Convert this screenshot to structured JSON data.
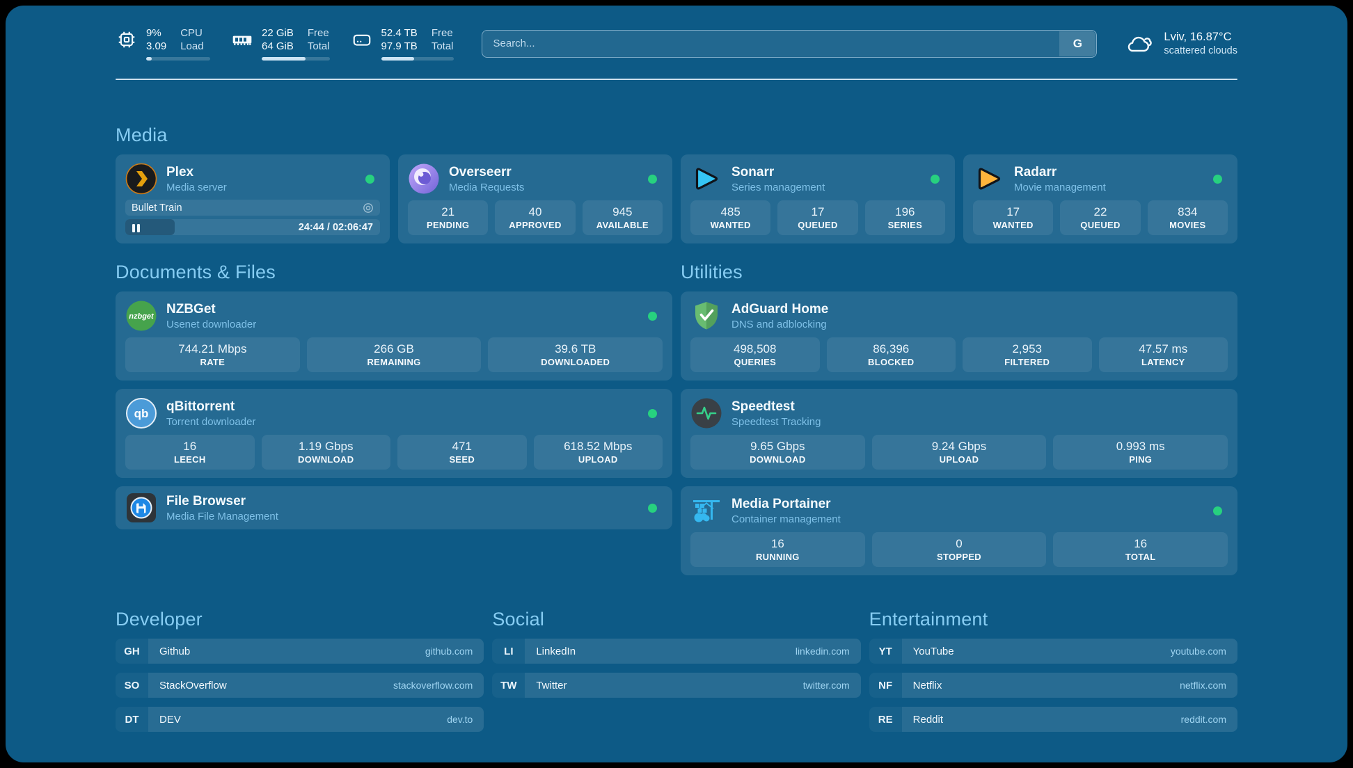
{
  "header": {
    "system_stats": [
      {
        "icon": "cpu-icon",
        "rows": [
          {
            "value": "9%",
            "label": "CPU"
          },
          {
            "value": "3.09",
            "label": "Load"
          }
        ],
        "progress_pct": 9
      },
      {
        "icon": "ram-icon",
        "rows": [
          {
            "value": "22 GiB",
            "label": "Free"
          },
          {
            "value": "64 GiB",
            "label": "Total"
          }
        ],
        "progress_pct": 65
      },
      {
        "icon": "disk-icon",
        "rows": [
          {
            "value": "52.4 TB",
            "label": "Free"
          },
          {
            "value": "97.9 TB",
            "label": "Total"
          }
        ],
        "progress_pct": 46
      }
    ],
    "search": {
      "placeholder": "Search...",
      "engine_button_label": "G"
    },
    "weather": {
      "icon": "cloud-icon",
      "location_temperature": "Lviv, 16.87°C",
      "condition": "scattered clouds"
    }
  },
  "media": {
    "title": "Media",
    "plex": {
      "name": "Plex",
      "description": "Media server",
      "status": "online",
      "now_playing": {
        "title": "Bullet Train",
        "time_display": "24:44 / 02:06:47",
        "progress_pct": 19.5
      }
    },
    "overseerr": {
      "name": "Overseerr",
      "description": "Media Requests",
      "status": "online",
      "stats": [
        {
          "value": "21",
          "label": "PENDING"
        },
        {
          "value": "40",
          "label": "APPROVED"
        },
        {
          "value": "945",
          "label": "AVAILABLE"
        }
      ]
    },
    "sonarr": {
      "name": "Sonarr",
      "description": "Series management",
      "status": "online",
      "stats": [
        {
          "value": "485",
          "label": "WANTED"
        },
        {
          "value": "17",
          "label": "QUEUED"
        },
        {
          "value": "196",
          "label": "SERIES"
        }
      ]
    },
    "radarr": {
      "name": "Radarr",
      "description": "Movie management",
      "status": "online",
      "stats": [
        {
          "value": "17",
          "label": "WANTED"
        },
        {
          "value": "22",
          "label": "QUEUED"
        },
        {
          "value": "834",
          "label": "MOVIES"
        }
      ]
    }
  },
  "documents_files": {
    "title": "Documents & Files",
    "nzbget": {
      "name": "NZBGet",
      "description": "Usenet downloader",
      "status": "online",
      "logo_text": "nzbget",
      "stats": [
        {
          "value": "744.21 Mbps",
          "label": "RATE"
        },
        {
          "value": "266 GB",
          "label": "REMAINING"
        },
        {
          "value": "39.6 TB",
          "label": "DOWNLOADED"
        }
      ]
    },
    "qbittorrent": {
      "name": "qBittorrent",
      "description": "Torrent downloader",
      "status": "online",
      "logo_text": "qb",
      "stats": [
        {
          "value": "16",
          "label": "LEECH"
        },
        {
          "value": "1.19 Gbps",
          "label": "DOWNLOAD"
        },
        {
          "value": "471",
          "label": "SEED"
        },
        {
          "value": "618.52 Mbps",
          "label": "UPLOAD"
        }
      ]
    },
    "filebrowser": {
      "name": "File Browser",
      "description": "Media File Management",
      "status": "online"
    }
  },
  "utilities": {
    "title": "Utilities",
    "adguard": {
      "name": "AdGuard Home",
      "description": "DNS and adblocking",
      "stats": [
        {
          "value": "498,508",
          "label": "QUERIES"
        },
        {
          "value": "86,396",
          "label": "BLOCKED"
        },
        {
          "value": "2,953",
          "label": "FILTERED"
        },
        {
          "value": "47.57 ms",
          "label": "LATENCY"
        }
      ]
    },
    "speedtest": {
      "name": "Speedtest",
      "description": "Speedtest Tracking",
      "stats": [
        {
          "value": "9.65 Gbps",
          "label": "DOWNLOAD"
        },
        {
          "value": "9.24 Gbps",
          "label": "UPLOAD"
        },
        {
          "value": "0.993 ms",
          "label": "PING"
        }
      ]
    },
    "portainer": {
      "name": "Media Portainer",
      "description": "Container management",
      "status": "online",
      "stats": [
        {
          "value": "16",
          "label": "RUNNING"
        },
        {
          "value": "0",
          "label": "STOPPED"
        },
        {
          "value": "16",
          "label": "TOTAL"
        }
      ]
    }
  },
  "link_sections": [
    {
      "title": "Developer",
      "links": [
        {
          "abbr": "GH",
          "name": "Github",
          "url": "github.com"
        },
        {
          "abbr": "SO",
          "name": "StackOverflow",
          "url": "stackoverflow.com"
        },
        {
          "abbr": "DT",
          "name": "DEV",
          "url": "dev.to"
        }
      ]
    },
    {
      "title": "Social",
      "links": [
        {
          "abbr": "LI",
          "name": "LinkedIn",
          "url": "linkedin.com"
        },
        {
          "abbr": "TW",
          "name": "Twitter",
          "url": "twitter.com"
        }
      ]
    },
    {
      "title": "Entertainment",
      "links": [
        {
          "abbr": "YT",
          "name": "YouTube",
          "url": "youtube.com"
        },
        {
          "abbr": "NF",
          "name": "Netflix",
          "url": "netflix.com"
        },
        {
          "abbr": "RE",
          "name": "Reddit",
          "url": "reddit.com"
        }
      ]
    }
  ],
  "colors": {
    "status_online": "#27d17f",
    "accent_text": "#87cdf3",
    "background": "#0d5a86"
  }
}
